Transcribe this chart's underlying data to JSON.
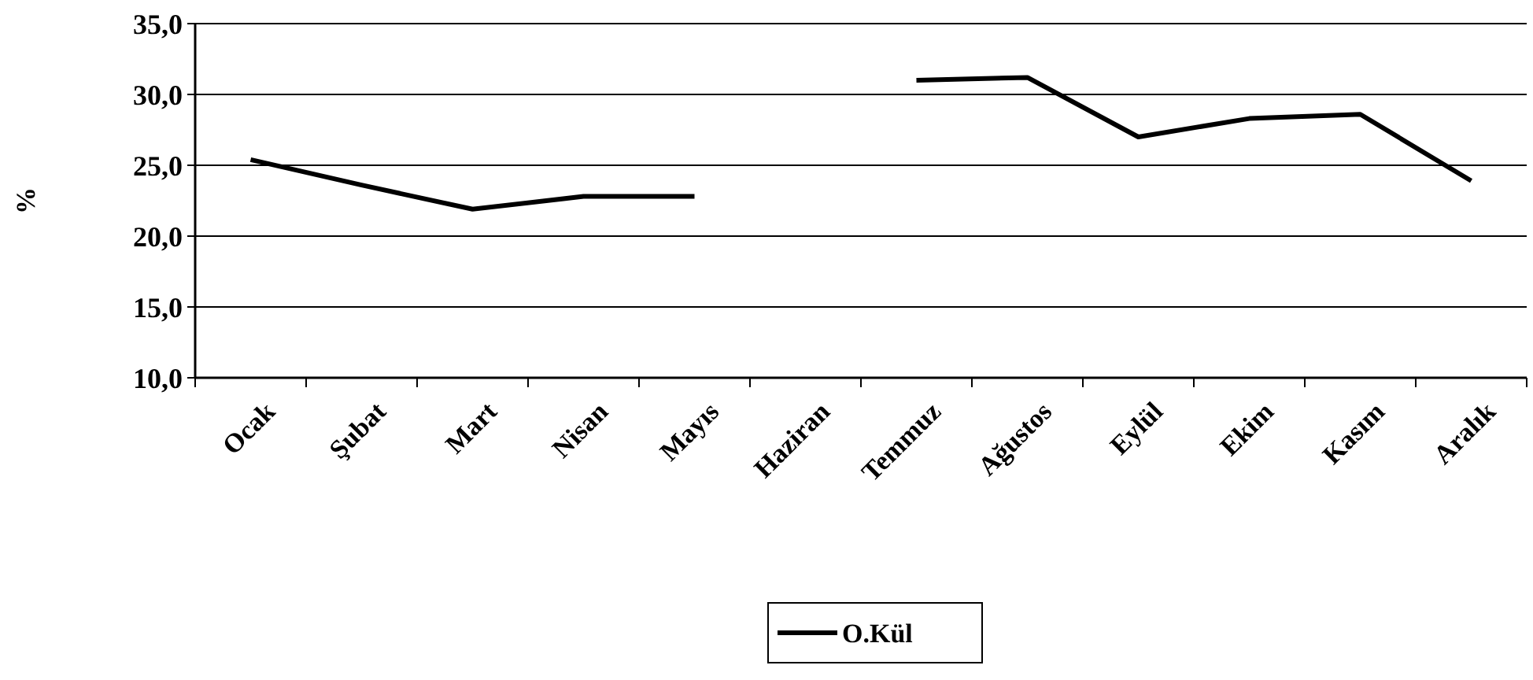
{
  "chart_data": {
    "type": "line",
    "ylabel": "%",
    "categories": [
      "Ocak",
      "Şubat",
      "Mart",
      "Nisan",
      "Mayıs",
      "Haziran",
      "Temmuz",
      "Ağustos",
      "Eylül",
      "Ekim",
      "Kasım",
      "Aralık"
    ],
    "series": [
      {
        "name": "O.Kül",
        "color": "#000000",
        "values": [
          25.4,
          23.6,
          21.9,
          22.8,
          22.8,
          null,
          31.0,
          31.2,
          27.0,
          28.3,
          28.6,
          23.9
        ]
      }
    ],
    "ylim": [
      10,
      35
    ],
    "yticks": [
      {
        "value": 10,
        "label": "10,0"
      },
      {
        "value": 15,
        "label": "15,0"
      },
      {
        "value": 20,
        "label": "20,0"
      },
      {
        "value": 25,
        "label": "25,0"
      },
      {
        "value": 30,
        "label": "30,0"
      },
      {
        "value": 35,
        "label": "35,0"
      }
    ],
    "grid": "y",
    "legend": "bottom",
    "marker": "none",
    "line_style": "solid"
  }
}
